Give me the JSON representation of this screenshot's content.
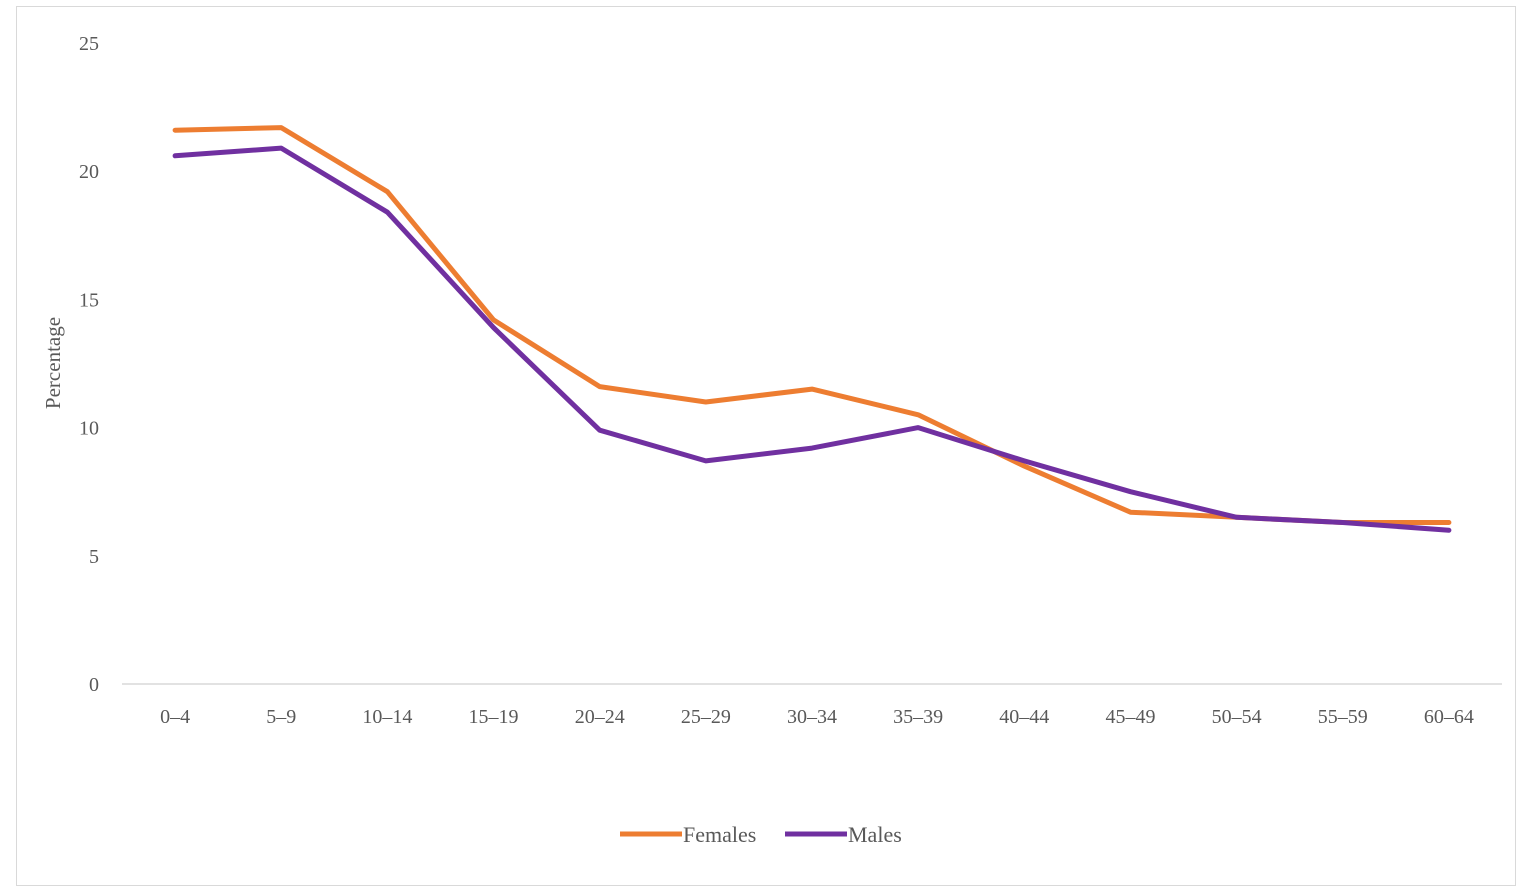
{
  "chart_data": {
    "type": "line",
    "title": "",
    "xlabel": "",
    "ylabel": "Percentage",
    "ylim": [
      0,
      25
    ],
    "yticks": [
      "0",
      "5",
      "10",
      "15",
      "20",
      "25"
    ],
    "categories": [
      "0–4",
      "5–9",
      "10–14",
      "15–19",
      "20–24",
      "25–29",
      "30–34",
      "35–39",
      "40–44",
      "45–49",
      "50–54",
      "55–59",
      "60–64"
    ],
    "grid": false,
    "legend_position": "bottom",
    "series": [
      {
        "name": "Females",
        "color": "#ED7D31",
        "values": [
          21.6,
          21.7,
          19.2,
          14.2,
          11.6,
          11.0,
          11.5,
          10.5,
          8.5,
          6.7,
          6.5,
          6.3,
          6.3
        ]
      },
      {
        "name": "Males",
        "color": "#7030A0",
        "values": [
          20.6,
          20.9,
          18.4,
          13.9,
          9.9,
          8.7,
          9.2,
          10.0,
          8.7,
          7.5,
          6.5,
          6.3,
          6.0
        ]
      }
    ]
  }
}
